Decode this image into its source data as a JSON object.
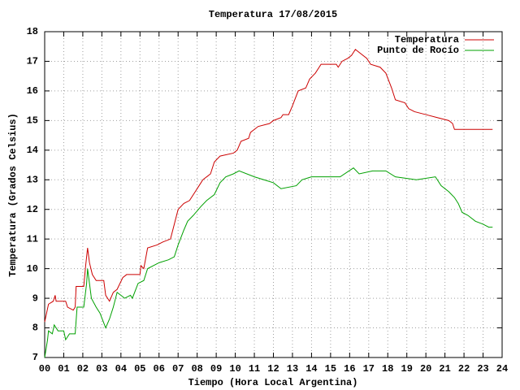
{
  "chart_data": {
    "type": "line",
    "title": "Temperatura 17/08/2015",
    "xlabel": "Tiempo (Hora Local Argentina)",
    "ylabel": "Temperatura (Grados Celsius)",
    "xlim": [
      0,
      24
    ],
    "ylim": [
      7,
      18
    ],
    "yticks": [
      7,
      8,
      9,
      10,
      11,
      12,
      13,
      14,
      15,
      16,
      17,
      18
    ],
    "xticks": [
      {
        "value": 0,
        "label": "00"
      },
      {
        "value": 1,
        "label": "01"
      },
      {
        "value": 2,
        "label": "02"
      },
      {
        "value": 3,
        "label": "03"
      },
      {
        "value": 4,
        "label": "04"
      },
      {
        "value": 5,
        "label": "05"
      },
      {
        "value": 6,
        "label": "06"
      },
      {
        "value": 7,
        "label": "07"
      },
      {
        "value": 8,
        "label": "08"
      },
      {
        "value": 9,
        "label": "09"
      },
      {
        "value": 10,
        "label": "10"
      },
      {
        "value": 11,
        "label": "11"
      },
      {
        "value": 12,
        "label": "12"
      },
      {
        "value": 13,
        "label": "13"
      },
      {
        "value": 14,
        "label": "14"
      },
      {
        "value": 15,
        "label": "15"
      },
      {
        "value": 16,
        "label": "16"
      },
      {
        "value": 17,
        "label": "17"
      },
      {
        "value": 18,
        "label": "18"
      },
      {
        "value": 19,
        "label": "19"
      },
      {
        "value": 20,
        "label": "20"
      },
      {
        "value": 21,
        "label": "21"
      },
      {
        "value": 22,
        "label": "22"
      },
      {
        "value": 23,
        "label": "23"
      },
      {
        "value": 24,
        "label": "24"
      }
    ],
    "grid": true,
    "legend": "upper right",
    "series": [
      {
        "name": "Temperatura",
        "color": "#cc0000",
        "x": [
          0,
          0.2,
          0.45,
          0.55,
          0.6,
          1.1,
          1.2,
          1.5,
          1.6,
          1.65,
          2.05,
          2.15,
          2.25,
          2.35,
          2.5,
          2.7,
          3.1,
          3.2,
          3.4,
          3.6,
          3.8,
          4.1,
          4.3,
          5,
          5.05,
          5.2,
          5.4,
          5.9,
          6.2,
          6.6,
          6.8,
          7,
          7.3,
          7.6,
          7.9,
          8.1,
          8.3,
          8.7,
          8.9,
          9.2,
          9.9,
          10.1,
          10.3,
          10.7,
          10.8,
          11.2,
          11.8,
          12,
          12.4,
          12.5,
          12.8,
          13,
          13.3,
          13.7,
          13.9,
          14.2,
          14.5,
          15.3,
          15.4,
          15.6,
          15.9,
          16.1,
          16.3,
          16.5,
          16.9,
          17.1,
          17.6,
          17.9,
          18.2,
          18.4,
          18.9,
          19.1,
          19.4,
          20,
          20.6,
          21.2,
          21.4,
          21.5,
          23.5
        ],
        "values": [
          8.2,
          8.8,
          8.9,
          9.1,
          8.9,
          8.9,
          8.7,
          8.6,
          8.7,
          9.4,
          9.4,
          10.1,
          10.7,
          10.2,
          9.8,
          9.6,
          9.6,
          9.1,
          8.9,
          9.2,
          9.3,
          9.7,
          9.8,
          9.8,
          10.1,
          10,
          10.7,
          10.8,
          10.9,
          11,
          11.5,
          12,
          12.2,
          12.3,
          12.6,
          12.8,
          13,
          13.2,
          13.6,
          13.8,
          13.9,
          14,
          14.3,
          14.4,
          14.6,
          14.8,
          14.9,
          15,
          15.1,
          15.2,
          15.2,
          15.5,
          16,
          16.1,
          16.4,
          16.6,
          16.9,
          16.9,
          16.8,
          17,
          17.1,
          17.2,
          17.4,
          17.3,
          17.1,
          16.9,
          16.8,
          16.6,
          16.1,
          15.7,
          15.6,
          15.4,
          15.3,
          15.2,
          15.1,
          15,
          14.9,
          14.7,
          14.7
        ]
      },
      {
        "name": "Punto de Rocío",
        "color": "#00a000",
        "x": [
          0,
          0.15,
          0.2,
          0.4,
          0.5,
          0.7,
          1,
          1.1,
          1.3,
          1.6,
          1.7,
          2.05,
          2.2,
          2.25,
          2.35,
          2.45,
          2.7,
          2.9,
          3.2,
          3.4,
          3.6,
          3.8,
          4.2,
          4.5,
          4.6,
          4.9,
          5.2,
          5.4,
          6,
          6.5,
          6.8,
          7,
          7.3,
          7.5,
          7.8,
          8.2,
          8.5,
          8.9,
          9.2,
          9.5,
          9.9,
          10.2,
          11,
          11.5,
          12,
          12.4,
          13.2,
          13.5,
          14,
          15.5,
          16.2,
          16.5,
          17.2,
          17.9,
          18.4,
          19.5,
          20.5,
          20.8,
          21.2,
          21.5,
          21.7,
          21.9,
          22.2,
          22.6,
          23,
          23.3,
          23.5
        ],
        "values": [
          7,
          7.6,
          7.9,
          7.8,
          8.1,
          7.9,
          7.9,
          7.6,
          7.8,
          7.8,
          8.7,
          8.7,
          9.5,
          10,
          9.5,
          9,
          8.7,
          8.5,
          8,
          8.3,
          8.7,
          9.2,
          9,
          9.1,
          9,
          9.5,
          9.6,
          10,
          10.2,
          10.3,
          10.4,
          10.8,
          11.3,
          11.6,
          11.8,
          12.1,
          12.3,
          12.5,
          12.9,
          13.1,
          13.2,
          13.3,
          13.1,
          13,
          12.9,
          12.7,
          12.8,
          13,
          13.1,
          13.1,
          13.4,
          13.2,
          13.3,
          13.3,
          13.1,
          13,
          13.1,
          12.8,
          12.6,
          12.4,
          12.2,
          11.9,
          11.8,
          11.6,
          11.5,
          11.4,
          11.4
        ]
      }
    ]
  }
}
